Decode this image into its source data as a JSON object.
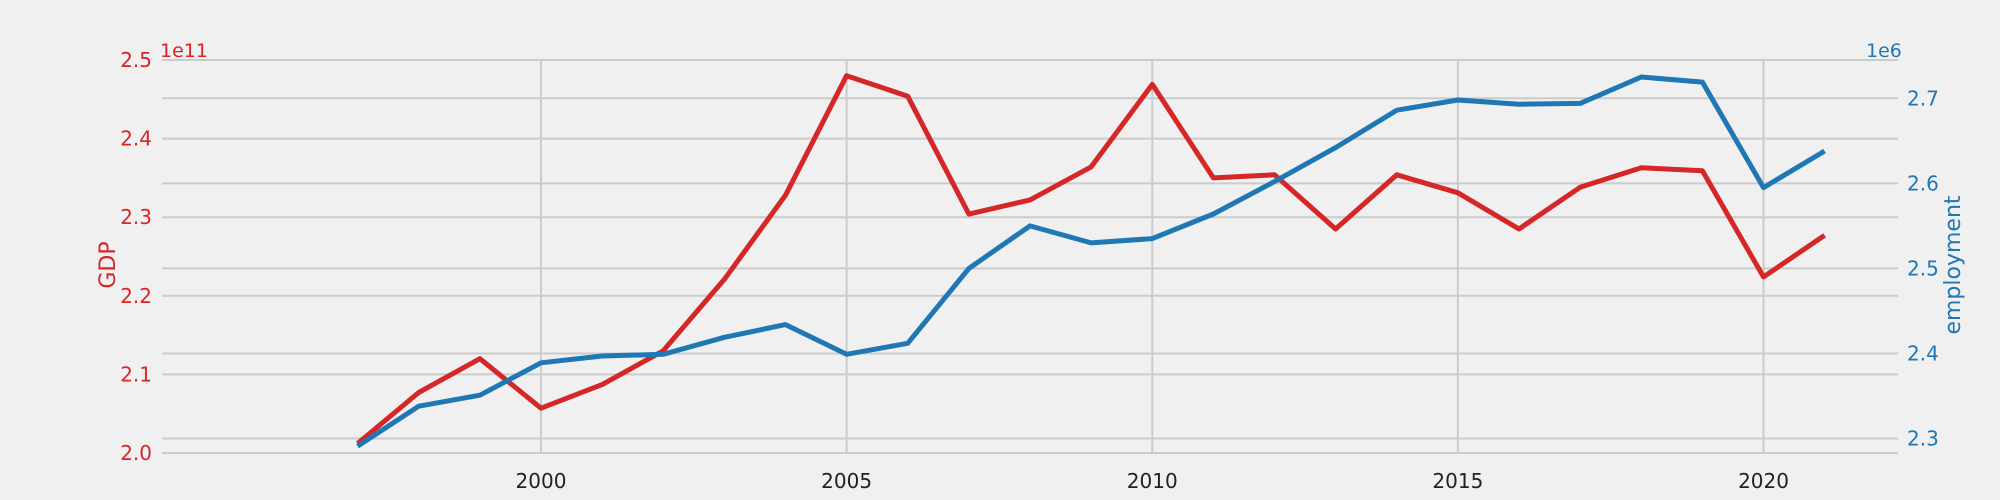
{
  "chart_data": {
    "type": "line",
    "x": [
      1997,
      1998,
      1999,
      2000,
      2001,
      2002,
      2003,
      2004,
      2005,
      2006,
      2007,
      2008,
      2009,
      2010,
      2011,
      2012,
      2013,
      2014,
      2015,
      2016,
      2017,
      2018,
      2019,
      2020,
      2021
    ],
    "x_ticks": [
      "2000",
      "2005",
      "2010",
      "2015",
      "2020"
    ],
    "xlim": [
      1993.8,
      2022.2
    ],
    "grid": true,
    "legend": "none",
    "left_axis": {
      "label": "GDP",
      "offset_text": "1e11",
      "color": "#d62728",
      "ylim": [
        2.0,
        2.5
      ],
      "ticks": [
        "2.0",
        "2.1",
        "2.2",
        "2.3",
        "2.4",
        "2.5"
      ]
    },
    "right_axis": {
      "label": "employment",
      "offset_text": "1e6",
      "color": "#1f77b4",
      "ylim": [
        2.283,
        2.745
      ],
      "ticks": [
        "2.3",
        "2.4",
        "2.5",
        "2.6",
        "2.7"
      ]
    },
    "series": [
      {
        "axis": "left",
        "color": "#d62728",
        "values": [
          2.012,
          2.077,
          2.12,
          2.057,
          2.087,
          2.13,
          2.221,
          2.328,
          2.48,
          2.454,
          2.304,
          2.322,
          2.364,
          2.469,
          2.35,
          2.354,
          2.285,
          2.354,
          2.331,
          2.285,
          2.338,
          2.363,
          2.359,
          2.224,
          2.277
        ]
      },
      {
        "axis": "right",
        "color": "#1f77b4",
        "values": [
          2.291,
          2.338,
          2.351,
          2.389,
          2.397,
          2.399,
          2.419,
          2.434,
          2.399,
          2.412,
          2.5,
          2.55,
          2.53,
          2.535,
          2.564,
          2.602,
          2.642,
          2.686,
          2.698,
          2.693,
          2.694,
          2.725,
          2.719,
          2.595,
          2.638
        ]
      }
    ]
  }
}
